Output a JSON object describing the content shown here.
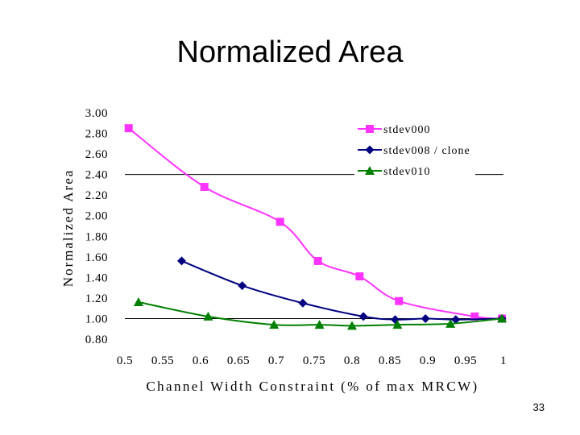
{
  "slide": {
    "title": "Normalized Area",
    "page_number": "33"
  },
  "chart_data": {
    "type": "line",
    "title": "",
    "xlabel": "Channel Width Constraint (% of max MRCW)",
    "ylabel": "Normalized Area",
    "xlim": [
      0.5,
      1.0
    ],
    "ylim": [
      0.8,
      3.0
    ],
    "x_ticks": [
      "0.5",
      "0.55",
      "0.6",
      "0.65",
      "0.7",
      "0.75",
      "0.8",
      "0.85",
      "0.9",
      "0.95",
      "1"
    ],
    "y_ticks": [
      "0.80",
      "1.00",
      "1.20",
      "1.40",
      "1.60",
      "1.80",
      "2.00",
      "2.20",
      "2.40",
      "2.60",
      "2.80",
      "3.00"
    ],
    "reference_lines": [
      1.0,
      2.4
    ],
    "legend_position": "top-right",
    "series": [
      {
        "name": "stdev000",
        "color": "#ff33ff",
        "marker": "square",
        "x": [
          0.505,
          0.605,
          0.705,
          0.755,
          0.81,
          0.862,
          0.962,
          0.998
        ],
        "y": [
          2.85,
          2.28,
          1.94,
          1.56,
          1.41,
          1.17,
          1.02,
          1.0
        ]
      },
      {
        "name": "stdev008 / clone",
        "color": "#000080",
        "marker": "diamond",
        "x": [
          0.575,
          0.655,
          0.735,
          0.815,
          0.857,
          0.897,
          0.937,
          0.998
        ],
        "y": [
          1.56,
          1.32,
          1.15,
          1.02,
          0.99,
          1.0,
          0.99,
          1.0
        ]
      },
      {
        "name": "stdev010",
        "color": "#008000",
        "marker": "triangle",
        "x": [
          0.518,
          0.61,
          0.697,
          0.757,
          0.8,
          0.86,
          0.93,
          0.998
        ],
        "y": [
          1.16,
          1.02,
          0.94,
          0.94,
          0.93,
          0.94,
          0.95,
          1.0
        ]
      }
    ]
  }
}
